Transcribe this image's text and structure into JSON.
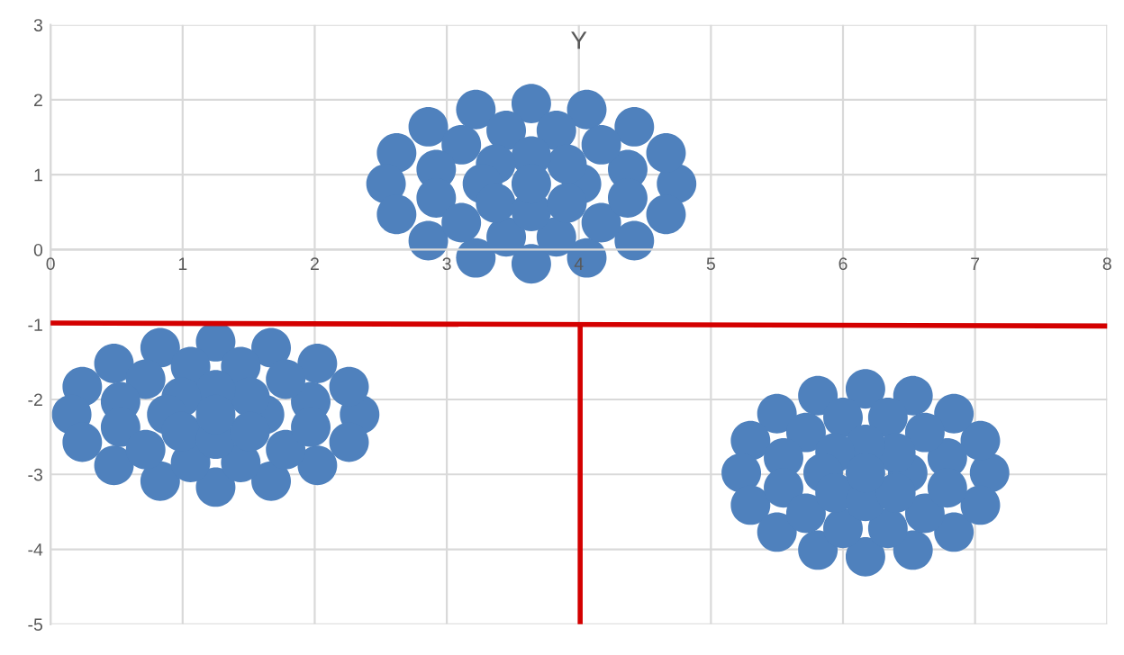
{
  "chart_data": {
    "type": "scatter",
    "title": "Y",
    "xlim": [
      0,
      8
    ],
    "ylim": [
      -5,
      3
    ],
    "xticks": [
      0,
      1,
      2,
      3,
      4,
      5,
      6,
      7,
      8
    ],
    "yticks": [
      -5,
      -4,
      -3,
      -2,
      -1,
      0,
      1,
      2,
      3
    ],
    "grid": true,
    "legend": false,
    "series": [
      {
        "marker": "circle",
        "color": "#4f81bd",
        "x": [
          4.74,
          4.66,
          4.42,
          4.06,
          3.64,
          3.22,
          2.86,
          2.62,
          2.54,
          2.62,
          2.86,
          3.22,
          3.64,
          4.06,
          4.42,
          4.66,
          4.37,
          4.17,
          3.83,
          3.45,
          3.11,
          2.92,
          2.92,
          3.11,
          3.45,
          3.83,
          4.17,
          4.37,
          4.02,
          3.91,
          3.64,
          3.37,
          3.27,
          3.37,
          3.64,
          3.91,
          3.64,
          2.34,
          2.26,
          2.02,
          1.67,
          1.25,
          0.83,
          0.48,
          0.24,
          0.16,
          0.24,
          0.48,
          0.83,
          1.25,
          1.67,
          2.02,
          2.26,
          1.97,
          1.78,
          1.44,
          1.06,
          0.72,
          0.53,
          0.53,
          0.72,
          1.06,
          1.44,
          1.78,
          1.97,
          1.62,
          1.51,
          1.25,
          0.99,
          0.88,
          0.99,
          1.25,
          1.51,
          1.25,
          7.11,
          7.04,
          6.84,
          6.53,
          6.17,
          5.81,
          5.5,
          5.3,
          5.23,
          5.3,
          5.5,
          5.81,
          6.17,
          6.53,
          6.84,
          7.04,
          6.79,
          6.62,
          6.34,
          6.0,
          5.72,
          5.55,
          5.55,
          5.72,
          6.0,
          6.34,
          6.62,
          6.79,
          6.49,
          6.4,
          6.17,
          5.94,
          5.85,
          5.94,
          6.17,
          6.4,
          6.17
        ],
        "values": [
          0.88,
          1.29,
          1.64,
          1.87,
          1.95,
          1.87,
          1.64,
          1.29,
          0.88,
          0.47,
          0.12,
          -0.11,
          -0.19,
          -0.11,
          0.12,
          0.47,
          1.07,
          1.4,
          1.59,
          1.59,
          1.4,
          1.07,
          0.69,
          0.36,
          0.17,
          0.17,
          0.36,
          0.69,
          0.88,
          1.14,
          1.25,
          1.14,
          0.88,
          0.62,
          0.51,
          0.62,
          0.88,
          -2.2,
          -1.83,
          -1.52,
          -1.31,
          -1.23,
          -1.31,
          -1.52,
          -1.83,
          -2.2,
          -2.57,
          -2.88,
          -3.09,
          -3.17,
          -3.09,
          -2.88,
          -2.57,
          -2.03,
          -1.73,
          -1.56,
          -1.56,
          -1.73,
          -2.03,
          -2.37,
          -2.67,
          -2.84,
          -2.84,
          -2.67,
          -2.37,
          -2.2,
          -1.97,
          -1.87,
          -1.97,
          -2.2,
          -2.43,
          -2.53,
          -2.43,
          -2.2,
          -2.98,
          -2.55,
          -2.19,
          -1.95,
          -1.86,
          -1.95,
          -2.19,
          -2.55,
          -2.98,
          -3.41,
          -3.77,
          -4.01,
          -4.1,
          -4.01,
          -3.77,
          -3.41,
          -2.78,
          -2.44,
          -2.24,
          -2.24,
          -2.44,
          -2.78,
          -3.18,
          -3.52,
          -3.72,
          -3.72,
          -3.52,
          -3.18,
          -2.98,
          -2.71,
          -2.6,
          -2.71,
          -2.98,
          -3.25,
          -3.36,
          -3.25,
          -2.98
        ]
      },
      {
        "type": "line",
        "marker": "none",
        "color": "#d40000",
        "x": [
          0,
          8
        ],
        "values": [
          -0.98,
          -1.02
        ]
      },
      {
        "type": "line",
        "marker": "none",
        "color": "#d40000",
        "x": [
          4.01,
          4.01
        ],
        "values": [
          -1,
          -5
        ]
      }
    ]
  }
}
